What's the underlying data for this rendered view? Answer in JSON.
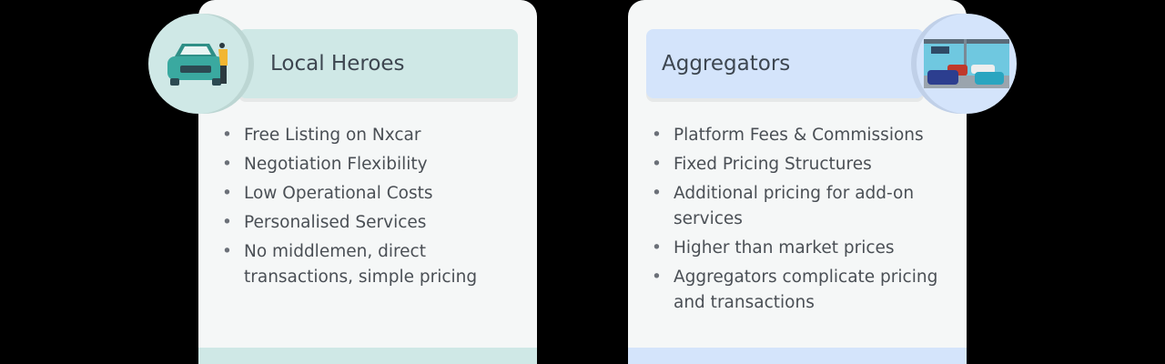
{
  "cards": [
    {
      "title": "Local Heroes",
      "icon": "car-dealer-icon",
      "accent": "#cfe8e6",
      "items": [
        "Free Listing on Nxcar",
        "Negotiation Flexibility",
        "Low Operational Costs",
        "Personalised Services",
        "No middlemen, direct transactions, simple pricing"
      ]
    },
    {
      "title": "Aggregators",
      "icon": "car-showroom-icon",
      "accent": "#d4e4fb",
      "items": [
        "Platform Fees & Commissions",
        "Fixed Pricing Structures",
        "Additional pricing for add-on services",
        "Higher than market prices",
        "Aggregators complicate pricing and transactions"
      ]
    }
  ]
}
